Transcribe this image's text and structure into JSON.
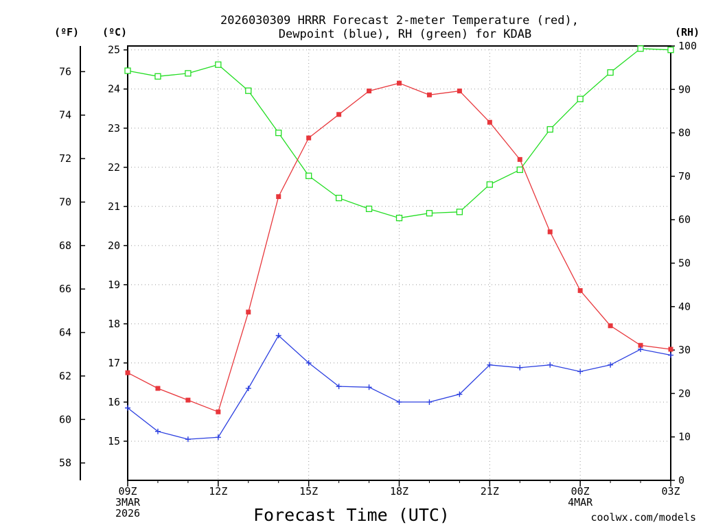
{
  "chart_data": {
    "type": "line",
    "title": "2026030309 HRRR Forecast 2-meter Temperature (red),",
    "subtitle": "Dewpoint (blue), RH (green) for KDAB",
    "xlabel": "Forecast Time (UTC)",
    "credit": "coolwx.com/models",
    "units": {
      "f": "(ºF)",
      "c": "(ºC)",
      "rh": "(RH)"
    },
    "colors": {
      "temperature": "#e8373c",
      "dewpoint": "#2b3fe0",
      "rh": "#22dd22",
      "grid": "#999999"
    },
    "x_hours": [
      0,
      1,
      2,
      3,
      4,
      5,
      6,
      7,
      8,
      9,
      10,
      11,
      12,
      13,
      14,
      15,
      16,
      17,
      18
    ],
    "x_ticks": [
      {
        "hour": 0,
        "lines": [
          "09Z",
          "3MAR",
          "2026"
        ]
      },
      {
        "hour": 3,
        "lines": [
          "12Z"
        ]
      },
      {
        "hour": 6,
        "lines": [
          "15Z"
        ]
      },
      {
        "hour": 9,
        "lines": [
          "18Z"
        ]
      },
      {
        "hour": 12,
        "lines": [
          "21Z"
        ]
      },
      {
        "hour": 15,
        "lines": [
          "00Z",
          "4MAR"
        ]
      },
      {
        "hour": 18,
        "lines": [
          "03Z"
        ]
      }
    ],
    "y_celsius": {
      "lim": [
        14.0,
        25.1
      ],
      "ticks": [
        "15",
        "16",
        "17",
        "18",
        "19",
        "20",
        "21",
        "22",
        "23",
        "24",
        "25"
      ]
    },
    "y_fahrenheit": {
      "ticks": [
        "58",
        "60",
        "62",
        "64",
        "66",
        "68",
        "70",
        "72",
        "74",
        "76"
      ]
    },
    "y_rh": {
      "lim": [
        0,
        100
      ],
      "ticks": [
        "0",
        "10",
        "20",
        "30",
        "40",
        "50",
        "60",
        "70",
        "80",
        "90",
        "100"
      ]
    },
    "series": [
      {
        "name": "Temperature",
        "units": "C",
        "marker": "filled-square",
        "values": [
          16.75,
          16.35,
          16.05,
          15.75,
          18.3,
          21.25,
          22.75,
          23.35,
          23.95,
          24.15,
          23.85,
          23.95,
          23.15,
          22.2,
          20.35,
          18.85,
          17.95,
          17.45,
          17.35
        ]
      },
      {
        "name": "Dewpoint",
        "units": "C",
        "marker": "plus",
        "values": [
          15.85,
          15.25,
          15.05,
          15.1,
          16.35,
          17.7,
          17.0,
          16.4,
          16.38,
          16.0,
          16.0,
          16.2,
          16.95,
          16.88,
          16.95,
          16.78,
          16.95,
          17.35,
          17.2
        ]
      },
      {
        "name": "RH",
        "units": "%",
        "marker": "open-square",
        "values": [
          94.3,
          93.0,
          93.7,
          95.7,
          89.7,
          80.0,
          70.1,
          65.0,
          62.5,
          60.4,
          61.5,
          61.8,
          68.1,
          71.5,
          80.8,
          87.8,
          93.9,
          99.4,
          99.1
        ]
      }
    ]
  }
}
